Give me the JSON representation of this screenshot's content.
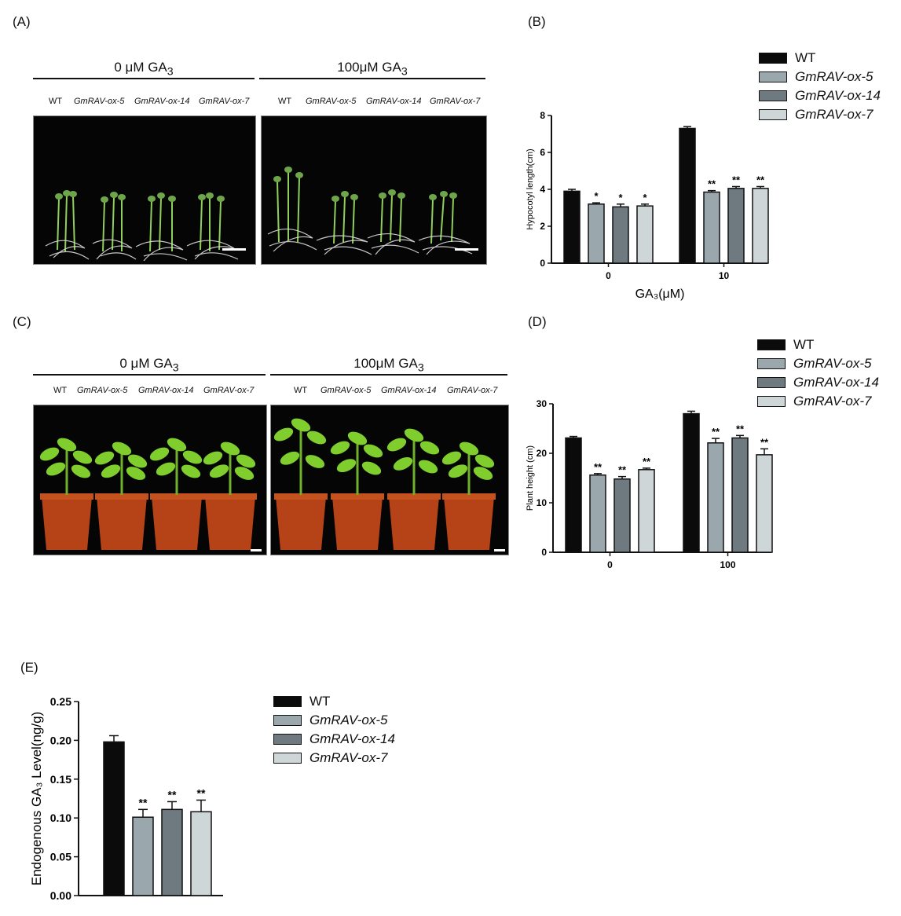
{
  "colors": {
    "WT": "#0b0b0b",
    "GmRAV-ox-5": "#9aa7ad",
    "GmRAV-ox-14": "#6f7a80",
    "GmRAV-ox-7": "#cfd6d8",
    "photo_bg": "#050505",
    "pot": "#b64318",
    "leaf": "#7fce2e"
  },
  "panels": {
    "A": {
      "label": "(A)",
      "conditions": [
        {
          "prefix": "0 μM GA",
          "sub": "3"
        },
        {
          "prefix": "100μM GA",
          "sub": "3"
        }
      ],
      "genotypes": [
        "WT",
        "GmRAV-ox-5",
        "GmRAV-ox-14",
        "GmRAV-ox-7"
      ]
    },
    "B": {
      "label": "(B)"
    },
    "C": {
      "label": "(C)",
      "conditions": [
        {
          "prefix": "0 μM GA",
          "sub": "3"
        },
        {
          "prefix": "100μM  GA",
          "sub": "3"
        }
      ],
      "genotypes": [
        "WT",
        "GmRAV-ox-5",
        "GmRAV-ox-14",
        "GmRAV-ox-7"
      ]
    },
    "D": {
      "label": "(D)"
    },
    "E": {
      "label": "(E)"
    }
  },
  "legend": [
    "WT",
    "GmRAV-ox-5",
    "GmRAV-ox-14",
    "GmRAV-ox-7"
  ],
  "chart_data": [
    {
      "panel": "B",
      "type": "bar",
      "categories": [
        "0",
        "10"
      ],
      "xlabel": "GA₃(μM)",
      "ylabel": "Hypocotyl length(cm)",
      "ylim": [
        0,
        8
      ],
      "yticks": [
        "0",
        "2",
        "4",
        "6",
        "8"
      ],
      "series": [
        {
          "name": "WT",
          "values": [
            3.9,
            7.3
          ],
          "errors": [
            0.1,
            0.1
          ],
          "sig": [
            "",
            ""
          ]
        },
        {
          "name": "GmRAV-ox-5",
          "values": [
            3.2,
            3.85
          ],
          "errors": [
            0.07,
            0.08
          ],
          "sig": [
            "*",
            "**"
          ]
        },
        {
          "name": "GmRAV-ox-14",
          "values": [
            3.05,
            4.05
          ],
          "errors": [
            0.15,
            0.1
          ],
          "sig": [
            "*",
            "**"
          ]
        },
        {
          "name": "GmRAV-ox-7",
          "values": [
            3.1,
            4.05
          ],
          "errors": [
            0.1,
            0.1
          ],
          "sig": [
            "*",
            "**"
          ]
        }
      ]
    },
    {
      "panel": "D",
      "type": "bar",
      "categories": [
        "0",
        "100"
      ],
      "xlabel": "",
      "ylabel": "Plant height (cm)",
      "ylim": [
        0,
        30
      ],
      "yticks": [
        "0",
        "10",
        "20",
        "30"
      ],
      "series": [
        {
          "name": "WT",
          "values": [
            23.1,
            28.0
          ],
          "errors": [
            0.3,
            0.5
          ],
          "sig": [
            "",
            ""
          ]
        },
        {
          "name": "GmRAV-ox-5",
          "values": [
            15.6,
            22.1
          ],
          "errors": [
            0.3,
            0.9
          ],
          "sig": [
            "**",
            "**"
          ]
        },
        {
          "name": "GmRAV-ox-14",
          "values": [
            14.8,
            23.1
          ],
          "errors": [
            0.5,
            0.5
          ],
          "sig": [
            "**",
            "**"
          ]
        },
        {
          "name": "GmRAV-ox-7",
          "values": [
            16.7,
            19.7
          ],
          "errors": [
            0.3,
            1.2
          ],
          "sig": [
            "**",
            "**"
          ]
        }
      ]
    },
    {
      "panel": "E",
      "type": "bar",
      "categories": [
        "WT",
        "GmRAV-ox-5",
        "GmRAV-ox-14",
        "GmRAV-ox-7"
      ],
      "xlabel": "",
      "ylabel": "Endogenous GA₃ Level(ng/g)",
      "ylim": [
        0,
        0.25
      ],
      "yticks": [
        "0.00",
        "0.05",
        "0.10",
        "0.15",
        "0.20",
        "0.25"
      ],
      "series": [
        {
          "name": "Endogenous GA3",
          "values": [
            0.198,
            0.101,
            0.111,
            0.108
          ],
          "errors": [
            0.008,
            0.01,
            0.01,
            0.015
          ],
          "sig": [
            "",
            "**",
            "**",
            "**"
          ]
        }
      ]
    }
  ]
}
